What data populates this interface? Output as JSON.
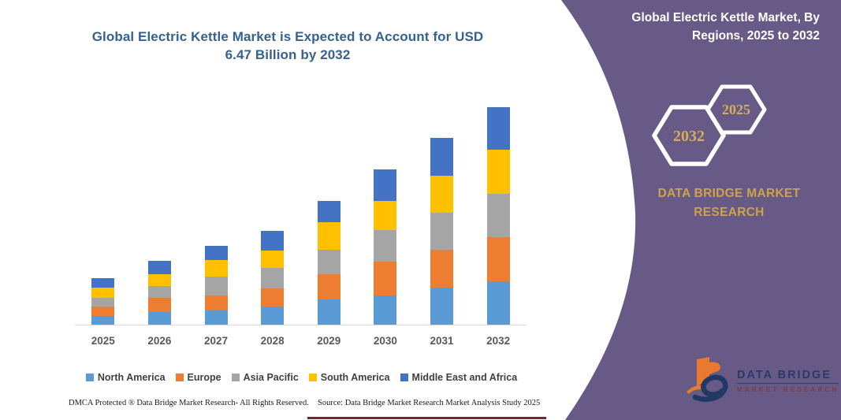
{
  "chart": {
    "title_lines": [
      "Global Electric Kettle Market is Expected to Account for USD",
      "6.47 Billion by 2032"
    ],
    "title_color": "#37618e",
    "axis_line_color": "#d9d9d9"
  },
  "chart_data": {
    "type": "bar",
    "stacked": true,
    "title": "Global Electric Kettle Market is Expected to Account for USD 6.47 Billion by 2032",
    "unit": "USD Billion",
    "categories": [
      "2025",
      "2026",
      "2027",
      "2028",
      "2029",
      "2030",
      "2031",
      "2032"
    ],
    "series": [
      {
        "name": "North America",
        "color": "#5B9BD5",
        "values": [
          0.25,
          0.38,
          0.43,
          0.55,
          0.75,
          0.86,
          1.1,
          1.29
        ]
      },
      {
        "name": "Europe",
        "color": "#ED7D31",
        "values": [
          0.3,
          0.41,
          0.45,
          0.53,
          0.75,
          1.01,
          1.13,
          1.31
        ]
      },
      {
        "name": "Asia Pacific",
        "color": "#A5A5A5",
        "values": [
          0.25,
          0.35,
          0.55,
          0.6,
          0.73,
          0.94,
          1.1,
          1.3
        ]
      },
      {
        "name": "South America",
        "color": "#FFC000",
        "values": [
          0.31,
          0.37,
          0.49,
          0.52,
          0.82,
          0.88,
          1.1,
          1.31
        ]
      },
      {
        "name": "Middle East and Africa",
        "color": "#4472C4",
        "values": [
          0.27,
          0.38,
          0.43,
          0.59,
          0.63,
          0.94,
          1.13,
          1.26
        ]
      }
    ],
    "totals": [
      1.38,
      1.89,
      2.35,
      2.79,
      3.68,
      4.63,
      5.56,
      6.47
    ],
    "ylim": [
      0,
      6.6
    ],
    "grid": false,
    "legend_position": "bottom",
    "xlabel": "",
    "ylabel": ""
  },
  "panel": {
    "background_color": "#685a87",
    "title": "Global Electric Kettle Market, By Regions, 2025 to 2032",
    "hexagons": [
      "2032",
      "2025"
    ],
    "hexagon_text_color": "#d6ad5c",
    "brand_text": "DATA BRIDGE MARKET RESEARCH",
    "brand_color": "#cda349",
    "logo": {
      "title": "DATA BRIDGE",
      "subtitle": "MARKET RESEARCH"
    }
  },
  "footer": {
    "dmca": "DMCA Protected ® Data Bridge Market Research-  All Rights Reserved.",
    "source": "Source: Data Bridge Market Research  Market Analysis Study 2025",
    "accent_line_color": "#7d2230"
  }
}
